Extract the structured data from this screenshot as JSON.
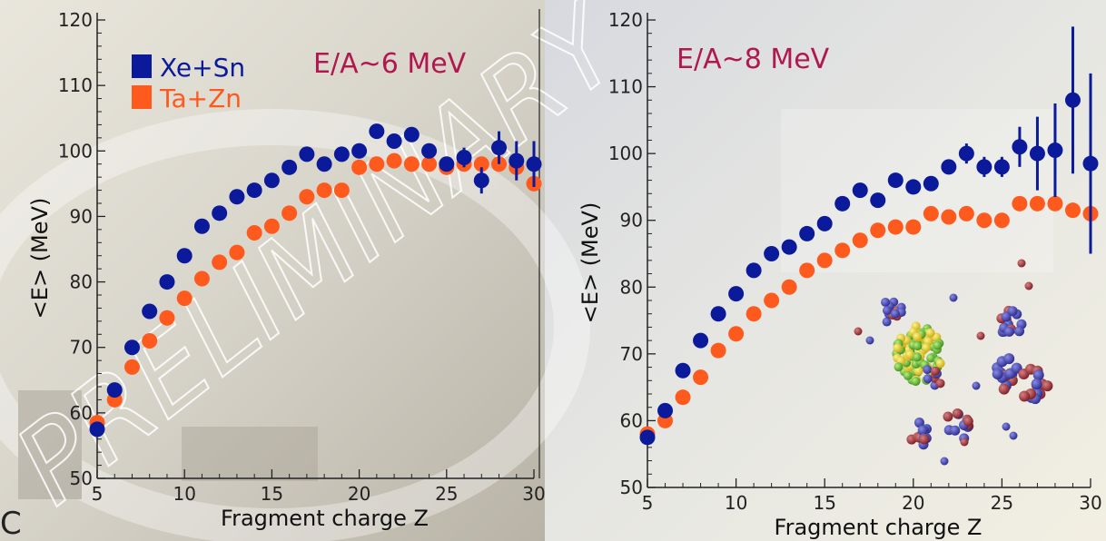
{
  "chart_data": [
    {
      "type": "scatter",
      "title": "",
      "annotation": "E/A~6 MeV",
      "watermark": "PRELIMINARY",
      "xlabel": "Fragment charge Z",
      "ylabel": "<E> (MeV)",
      "xlim": [
        5,
        30
      ],
      "ylim": [
        50,
        120
      ],
      "xticks": [
        5,
        10,
        15,
        20,
        25,
        30
      ],
      "yticks": [
        50,
        60,
        70,
        80,
        90,
        100,
        110,
        120
      ],
      "legend_position": "top-left",
      "series": [
        {
          "name": "Xe+Sn",
          "color": "#0a1a9a",
          "x": [
            5,
            6,
            7,
            8,
            9,
            10,
            11,
            12,
            13,
            14,
            15,
            16,
            17,
            18,
            19,
            20,
            21,
            22,
            23,
            24,
            25,
            26,
            27,
            28,
            29,
            30
          ],
          "y": [
            57.5,
            63.5,
            70,
            75.5,
            80,
            84,
            88.5,
            90.5,
            93,
            94,
            95.5,
            97.5,
            99.5,
            98,
            99.5,
            100,
            103,
            101.5,
            102.5,
            100,
            98,
            99,
            95.5,
            100.5,
            98.5,
            98
          ],
          "err": [
            0,
            0,
            0,
            0,
            0,
            0,
            0,
            0,
            0,
            0,
            0,
            0,
            0,
            0,
            0,
            0,
            0,
            0,
            0,
            0,
            1,
            1.5,
            2,
            2.5,
            3,
            3.5
          ]
        },
        {
          "name": "Ta+Zn",
          "color": "#ff5a1e",
          "x": [
            5,
            6,
            7,
            8,
            9,
            10,
            11,
            12,
            13,
            14,
            15,
            16,
            17,
            18,
            19,
            20,
            21,
            22,
            23,
            24,
            25,
            26,
            27,
            28,
            29,
            30
          ],
          "y": [
            58.5,
            62,
            67,
            71,
            74.5,
            77.5,
            80.5,
            83,
            84.5,
            87.5,
            88.5,
            90.5,
            93,
            94,
            94,
            97.5,
            98,
            98.5,
            98,
            98,
            97.5,
            98,
            98,
            98,
            97.5,
            95
          ],
          "err": []
        }
      ]
    },
    {
      "type": "scatter",
      "title": "",
      "annotation": "E/A~8 MeV",
      "xlabel": "Fragment charge Z",
      "ylabel": "<E> (MeV)",
      "xlim": [
        5,
        30
      ],
      "ylim": [
        50,
        120
      ],
      "xticks": [
        5,
        10,
        15,
        20,
        25,
        30
      ],
      "yticks": [
        50,
        60,
        70,
        80,
        90,
        100,
        110,
        120
      ],
      "series": [
        {
          "name": "Xe+Sn",
          "color": "#0a1a9a",
          "x": [
            5,
            6,
            7,
            8,
            9,
            10,
            11,
            12,
            13,
            14,
            15,
            16,
            17,
            18,
            19,
            20,
            21,
            22,
            23,
            24,
            25,
            26,
            27,
            28,
            29,
            30
          ],
          "y": [
            57.5,
            61.5,
            67.5,
            72,
            76,
            79,
            82.5,
            85,
            86,
            88,
            89.5,
            92.5,
            94.5,
            93,
            96,
            95,
            95.5,
            98,
            100,
            98,
            98,
            101,
            100,
            100.5,
            108,
            98.5
          ],
          "err": [
            0,
            0,
            0,
            0,
            0,
            0,
            0,
            0,
            0,
            0,
            0,
            0,
            0,
            0,
            0,
            0,
            0,
            1,
            1.5,
            1.5,
            1.5,
            3,
            5.5,
            7,
            11,
            13.5
          ]
        },
        {
          "name": "Ta+Zn",
          "color": "#ff5a1e",
          "x": [
            5,
            6,
            7,
            8,
            9,
            10,
            11,
            12,
            13,
            14,
            15,
            16,
            17,
            18,
            19,
            20,
            21,
            22,
            23,
            24,
            25,
            26,
            27,
            28,
            29,
            30
          ],
          "y": [
            58,
            60,
            63.5,
            66.5,
            70.5,
            73,
            76,
            78,
            80,
            82.5,
            84,
            85.5,
            87,
            88.5,
            89,
            89,
            91,
            90.5,
            91,
            90,
            90,
            92.5,
            92.5,
            92.5,
            91.5,
            91
          ],
          "err": []
        }
      ]
    }
  ]
}
